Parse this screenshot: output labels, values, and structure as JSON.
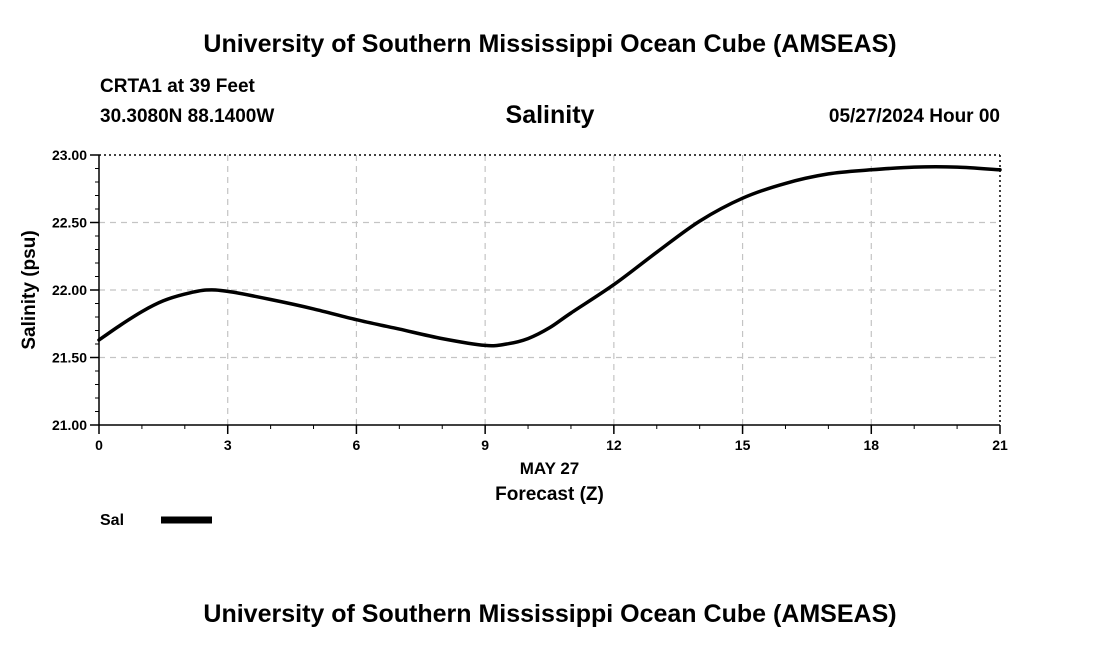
{
  "header": {
    "title_top": "University of Southern Mississippi Ocean Cube (AMSEAS)",
    "station": "CRTA1 at 39 Feet",
    "coords": "30.3080N  88.1400W",
    "variable": "Salinity",
    "datetime": "05/27/2024 Hour 00"
  },
  "footer": {
    "title_bottom": "University of Southern Mississippi Ocean Cube (AMSEAS)"
  },
  "chart_data": {
    "type": "line",
    "title": "Salinity",
    "xlabel": "Forecast (Z)",
    "xlabel_date": "MAY 27",
    "ylabel": "Salinity (psu)",
    "xlim": [
      0,
      21
    ],
    "ylim": [
      21.0,
      23.0
    ],
    "x_ticks": [
      0,
      3,
      6,
      9,
      12,
      15,
      18,
      21
    ],
    "y_ticks": [
      "21.00",
      "21.50",
      "22.00",
      "22.50",
      "23.00"
    ],
    "grid": true,
    "legend": {
      "position": "bottom-left",
      "entries": [
        "Sal"
      ]
    },
    "series": [
      {
        "name": "Sal",
        "color": "#000000",
        "x": [
          0,
          0.5,
          1,
          1.5,
          2,
          2.5,
          3,
          4,
          5,
          6,
          7,
          8,
          9,
          9.5,
          10,
          10.5,
          11,
          12,
          13,
          14,
          15,
          16,
          17,
          18,
          19,
          20,
          21
        ],
        "y": [
          21.63,
          21.74,
          21.84,
          21.92,
          21.97,
          22.0,
          21.99,
          21.93,
          21.86,
          21.78,
          21.71,
          21.64,
          21.59,
          21.6,
          21.64,
          21.72,
          21.83,
          22.04,
          22.28,
          22.51,
          22.68,
          22.79,
          22.86,
          22.89,
          22.91,
          22.91,
          22.89
        ]
      }
    ]
  }
}
